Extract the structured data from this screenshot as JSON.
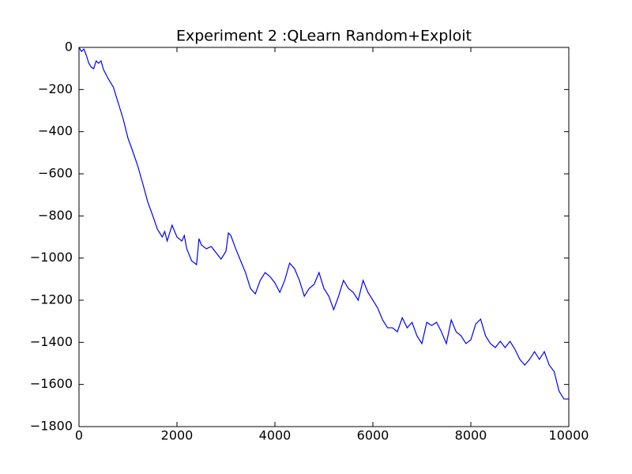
{
  "chart_data": {
    "type": "line",
    "title": "Experiment 2 :QLearn Random+Exploit",
    "x": [
      0,
      50,
      100,
      150,
      200,
      250,
      300,
      350,
      400,
      450,
      500,
      600,
      700,
      800,
      900,
      1000,
      1100,
      1200,
      1300,
      1400,
      1500,
      1600,
      1700,
      1750,
      1800,
      1900,
      2000,
      2100,
      2150,
      2200,
      2300,
      2400,
      2450,
      2500,
      2600,
      2700,
      2800,
      2900,
      3000,
      3050,
      3100,
      3200,
      3300,
      3400,
      3500,
      3600,
      3700,
      3800,
      3900,
      4000,
      4100,
      4200,
      4300,
      4400,
      4500,
      4600,
      4700,
      4800,
      4900,
      5000,
      5100,
      5200,
      5300,
      5400,
      5500,
      5600,
      5700,
      5800,
      5900,
      6000,
      6100,
      6200,
      6300,
      6400,
      6500,
      6600,
      6700,
      6800,
      6900,
      7000,
      7100,
      7200,
      7300,
      7400,
      7500,
      7600,
      7700,
      7800,
      7900,
      8000,
      8100,
      8200,
      8300,
      8400,
      8500,
      8600,
      8700,
      8800,
      8900,
      9000,
      9100,
      9200,
      9300,
      9400,
      9500,
      9600,
      9700,
      9800,
      9900,
      10000
    ],
    "series": [
      {
        "color": "#0000ff",
        "values": [
          0,
          -19,
          -8,
          -38,
          -75,
          -94,
          -101,
          -64,
          -75,
          -64,
          -105,
          -150,
          -188,
          -263,
          -338,
          -431,
          -495,
          -563,
          -645,
          -731,
          -795,
          -863,
          -900,
          -874,
          -919,
          -844,
          -900,
          -919,
          -893,
          -956,
          -1013,
          -1031,
          -908,
          -938,
          -956,
          -945,
          -975,
          -1005,
          -968,
          -881,
          -893,
          -956,
          -1013,
          -1069,
          -1144,
          -1170,
          -1106,
          -1069,
          -1088,
          -1118,
          -1163,
          -1106,
          -1024,
          -1050,
          -1106,
          -1181,
          -1144,
          -1125,
          -1069,
          -1144,
          -1181,
          -1245,
          -1181,
          -1106,
          -1144,
          -1163,
          -1200,
          -1106,
          -1163,
          -1200,
          -1238,
          -1294,
          -1331,
          -1331,
          -1350,
          -1283,
          -1331,
          -1305,
          -1369,
          -1406,
          -1305,
          -1320,
          -1305,
          -1350,
          -1406,
          -1294,
          -1350,
          -1369,
          -1406,
          -1388,
          -1313,
          -1290,
          -1369,
          -1406,
          -1425,
          -1395,
          -1425,
          -1395,
          -1433,
          -1481,
          -1508,
          -1481,
          -1444,
          -1481,
          -1444,
          -1508,
          -1538,
          -1631,
          -1669,
          -1669
        ]
      }
    ],
    "xlim": [
      0,
      10000
    ],
    "xticks": [
      0,
      2000,
      4000,
      6000,
      8000,
      10000
    ],
    "ylim": [
      -1800,
      0
    ],
    "yticks": [
      {
        "value": -1800,
        "label": "−1800"
      },
      {
        "value": -1600,
        "label": "−1600"
      },
      {
        "value": -1400,
        "label": "−1400"
      },
      {
        "value": -1200,
        "label": "−1200"
      },
      {
        "value": -1000,
        "label": "−1000"
      },
      {
        "value": -800,
        "label": "−800"
      },
      {
        "value": -600,
        "label": "−600"
      },
      {
        "value": -400,
        "label": "−400"
      },
      {
        "value": -200,
        "label": "−200"
      },
      0
    ]
  }
}
